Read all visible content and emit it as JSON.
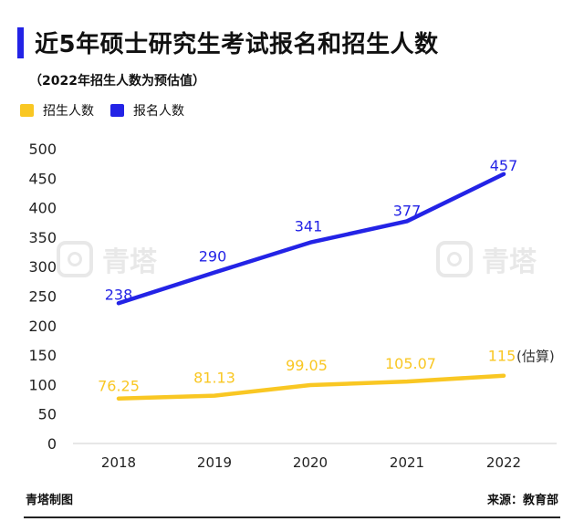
{
  "header": {
    "title": "近5年硕士研究生考试报名和招生人数",
    "subtitle": "（2022年招生人数为预估值）"
  },
  "legend": {
    "items": [
      {
        "label": "招生人数",
        "color": "#f9c723"
      },
      {
        "label": "报名人数",
        "color": "#2323e6"
      }
    ]
  },
  "watermark": {
    "text": "青塔"
  },
  "footer": {
    "left": "青塔制图",
    "right": "来源：教育部"
  },
  "chart_data": {
    "type": "line",
    "categories": [
      "2018",
      "2019",
      "2020",
      "2021",
      "2022"
    ],
    "ylim": [
      0,
      500
    ],
    "yticks": [
      "0",
      "50",
      "100",
      "150",
      "200",
      "250",
      "300",
      "350",
      "400",
      "450",
      "500"
    ],
    "grid": false,
    "legend_position": "top-left",
    "series": [
      {
        "name": "报名人数",
        "color": "#2323e6",
        "values": [
          238,
          290,
          341,
          377,
          457
        ],
        "labels": [
          "238",
          "290",
          "341",
          "377",
          "457"
        ]
      },
      {
        "name": "招生人数",
        "color": "#f9c723",
        "values": [
          76.25,
          81.13,
          99.05,
          105.07,
          115
        ],
        "labels": [
          "76.25",
          "81.13",
          "99.05",
          "105.07",
          "115"
        ]
      }
    ],
    "annotation": "(估算)"
  }
}
